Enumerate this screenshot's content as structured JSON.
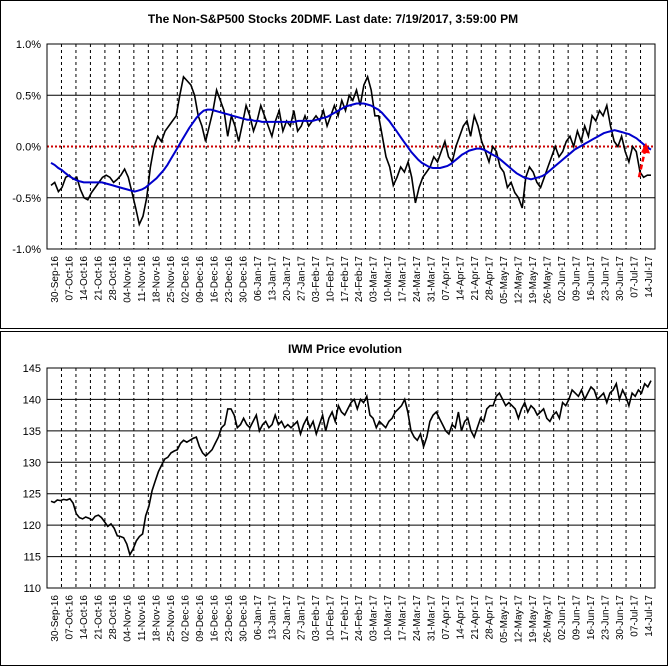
{
  "chart_data": [
    {
      "type": "line",
      "title": "The Non-S&P500 Stocks 20DMF. Last date: 7/19/2017, 3:59:00 PM",
      "y_tick_labels": [
        "1.0%",
        "0.5%",
        "0.0%",
        "-0.5%",
        "-1.0%"
      ],
      "x_tick_labels": [
        "30-Sep-16",
        "07-Oct-16",
        "14-Oct-16",
        "21-Oct-16",
        "28-Oct-16",
        "04-Nov-16",
        "11-Nov-16",
        "18-Nov-16",
        "25-Nov-16",
        "02-Dec-16",
        "09-Dec-16",
        "16-Dec-16",
        "23-Dec-16",
        "30-Dec-16",
        "06-Jan-17",
        "13-Jan-17",
        "20-Jan-17",
        "27-Jan-17",
        "03-Feb-17",
        "10-Feb-17",
        "17-Feb-17",
        "24-Feb-17",
        "03-Mar-17",
        "10-Mar-17",
        "17-Mar-17",
        "24-Mar-17",
        "31-Mar-17",
        "07-Apr-17",
        "14-Apr-17",
        "21-Apr-17",
        "28-Apr-17",
        "05-May-17",
        "12-May-17",
        "19-May-17",
        "26-May-17",
        "02-Jun-17",
        "09-Jun-17",
        "16-Jun-17",
        "23-Jun-17",
        "30-Jun-17",
        "07-Jul-17",
        "14-Jul-17"
      ],
      "ylim": [
        -1.0,
        1.0
      ],
      "grid": true,
      "zero_line_color": "#cc0000",
      "series_colors": [
        "#000000",
        "#0000cc"
      ],
      "arrow_color": "#ff0000",
      "series": [
        {
          "values": [
            -0.38,
            -0.35,
            -0.44,
            -0.4,
            -0.3,
            -0.28,
            -0.32,
            -0.3,
            -0.42,
            -0.5,
            -0.52,
            -0.45,
            -0.4,
            -0.35,
            -0.3,
            -0.28,
            -0.3,
            -0.35,
            -0.32,
            -0.28,
            -0.22,
            -0.3,
            -0.45,
            -0.6,
            -0.76,
            -0.68,
            -0.5,
            -0.2,
            0.0,
            0.1,
            0.05,
            0.15,
            0.2,
            0.25,
            0.3,
            0.5,
            0.68,
            0.64,
            0.6,
            0.5,
            0.3,
            0.2,
            0.05,
            0.2,
            0.35,
            0.55,
            0.45,
            0.35,
            0.1,
            0.3,
            0.2,
            0.05,
            0.22,
            0.4,
            0.3,
            0.15,
            0.25,
            0.4,
            0.3,
            0.2,
            0.1,
            0.25,
            0.35,
            0.15,
            0.25,
            0.2,
            0.35,
            0.15,
            0.2,
            0.3,
            0.2,
            0.25,
            0.3,
            0.25,
            0.35,
            0.2,
            0.3,
            0.4,
            0.3,
            0.45,
            0.35,
            0.5,
            0.45,
            0.55,
            0.4,
            0.6,
            0.68,
            0.55,
            0.3,
            0.3,
            0.1,
            -0.1,
            -0.2,
            -0.38,
            -0.3,
            -0.2,
            -0.25,
            -0.15,
            -0.3,
            -0.55,
            -0.4,
            -0.3,
            -0.25,
            -0.2,
            -0.1,
            -0.15,
            -0.05,
            0.05,
            -0.1,
            -0.15,
            0.0,
            0.1,
            0.2,
            0.25,
            0.1,
            0.3,
            0.2,
            0.05,
            -0.05,
            -0.15,
            0.0,
            -0.05,
            -0.2,
            -0.25,
            -0.4,
            -0.35,
            -0.45,
            -0.5,
            -0.6,
            -0.3,
            -0.2,
            -0.25,
            -0.35,
            -0.4,
            -0.3,
            -0.2,
            -0.1,
            0.0,
            -0.1,
            -0.05,
            0.05,
            0.1,
            0.0,
            0.15,
            0.05,
            0.2,
            0.1,
            0.3,
            0.25,
            0.35,
            0.3,
            0.4,
            0.2,
            0.05,
            0.0,
            0.1,
            -0.05,
            -0.15,
            0.0,
            -0.05,
            -0.25,
            -0.3,
            -0.28,
            -0.28
          ]
        },
        {
          "values": [
            -0.16,
            -0.18,
            -0.21,
            -0.23,
            -0.26,
            -0.29,
            -0.31,
            -0.33,
            -0.34,
            -0.35,
            -0.35,
            -0.35,
            -0.35,
            -0.35,
            -0.35,
            -0.36,
            -0.37,
            -0.38,
            -0.39,
            -0.4,
            -0.41,
            -0.42,
            -0.43,
            -0.44,
            -0.43,
            -0.42,
            -0.4,
            -0.37,
            -0.34,
            -0.31,
            -0.27,
            -0.23,
            -0.18,
            -0.12,
            -0.06,
            0.0,
            0.06,
            0.12,
            0.18,
            0.23,
            0.28,
            0.32,
            0.35,
            0.36,
            0.36,
            0.35,
            0.34,
            0.33,
            0.32,
            0.31,
            0.3,
            0.29,
            0.28,
            0.27,
            0.26,
            0.26,
            0.25,
            0.25,
            0.24,
            0.24,
            0.24,
            0.24,
            0.24,
            0.24,
            0.24,
            0.24,
            0.24,
            0.24,
            0.25,
            0.25,
            0.25,
            0.25,
            0.25,
            0.26,
            0.27,
            0.28,
            0.29,
            0.31,
            0.33,
            0.35,
            0.37,
            0.39,
            0.4,
            0.41,
            0.42,
            0.42,
            0.42,
            0.41,
            0.4,
            0.38,
            0.36,
            0.33,
            0.29,
            0.25,
            0.2,
            0.15,
            0.1,
            0.05,
            0.0,
            -0.05,
            -0.09,
            -0.13,
            -0.16,
            -0.18,
            -0.2,
            -0.21,
            -0.21,
            -0.21,
            -0.2,
            -0.19,
            -0.17,
            -0.14,
            -0.11,
            -0.08,
            -0.06,
            -0.04,
            -0.03,
            -0.02,
            -0.02,
            -0.03,
            -0.05,
            -0.07,
            -0.09,
            -0.11,
            -0.14,
            -0.17,
            -0.2,
            -0.23,
            -0.26,
            -0.28,
            -0.3,
            -0.31,
            -0.32,
            -0.31,
            -0.3,
            -0.29,
            -0.27,
            -0.24,
            -0.21,
            -0.18,
            -0.15,
            -0.12,
            -0.09,
            -0.06,
            -0.03,
            -0.01,
            0.01,
            0.03,
            0.05,
            0.07,
            0.09,
            0.11,
            0.13,
            0.14,
            0.15,
            0.16,
            0.15,
            0.14,
            0.13,
            0.12,
            0.1,
            0.08,
            0.05,
            0.02,
            -0.01,
            -0.03
          ]
        }
      ]
    },
    {
      "type": "line",
      "title": "IWM Price evolution",
      "y_tick_labels": [
        "145",
        "140",
        "135",
        "130",
        "125",
        "120",
        "115",
        "110"
      ],
      "x_tick_labels": [
        "30-Sep-16",
        "07-Oct-16",
        "14-Oct-16",
        "21-Oct-16",
        "28-Oct-16",
        "04-Nov-16",
        "11-Nov-16",
        "18-Nov-16",
        "25-Nov-16",
        "02-Dec-16",
        "09-Dec-16",
        "16-Dec-16",
        "23-Dec-16",
        "30-Dec-16",
        "06-Jan-17",
        "13-Jan-17",
        "20-Jan-17",
        "27-Jan-17",
        "03-Feb-17",
        "10-Feb-17",
        "17-Feb-17",
        "24-Feb-17",
        "03-Mar-17",
        "10-Mar-17",
        "17-Mar-17",
        "24-Mar-17",
        "31-Mar-17",
        "07-Apr-17",
        "14-Apr-17",
        "21-Apr-17",
        "28-Apr-17",
        "05-May-17",
        "12-May-17",
        "19-May-17",
        "26-May-17",
        "02-Jun-17",
        "09-Jun-17",
        "16-Jun-17",
        "23-Jun-17",
        "30-Jun-17",
        "07-Jul-17",
        "14-Jul-17"
      ],
      "ylim": [
        110,
        145
      ],
      "grid": true,
      "series_colors": [
        "#000000"
      ],
      "series": [
        {
          "values": [
            123.8,
            123.6,
            124.0,
            123.9,
            124.1,
            124.0,
            124.2,
            123.5,
            121.8,
            121.2,
            121.0,
            121.3,
            121.1,
            120.8,
            121.4,
            121.6,
            121.2,
            120.5,
            119.8,
            120.2,
            119.5,
            118.3,
            118.2,
            118.0,
            117.0,
            115.3,
            116.2,
            117.5,
            118.2,
            118.6,
            121.5,
            123.0,
            125.5,
            127.0,
            128.5,
            129.5,
            130.5,
            130.8,
            131.5,
            131.8,
            132.0,
            133.0,
            133.5,
            133.2,
            133.5,
            133.8,
            134.0,
            132.5,
            131.5,
            131.0,
            131.5,
            132.0,
            133.0,
            134.0,
            135.5,
            136.0,
            138.5,
            138.5,
            137.5,
            135.5,
            136.0,
            137.0,
            136.0,
            135.5,
            136.5,
            137.5,
            135.0,
            136.0,
            136.5,
            135.5,
            136.0,
            137.5,
            136.0,
            136.5,
            135.5,
            136.0,
            135.5,
            136.0,
            136.5,
            134.5,
            136.0,
            137.0,
            135.5,
            136.5,
            134.5,
            136.0,
            137.5,
            135.0,
            137.0,
            138.0,
            136.5,
            139.0,
            138.0,
            137.5,
            138.5,
            139.5,
            140.0,
            138.5,
            140.0,
            139.5,
            140.5,
            137.5,
            137.0,
            135.5,
            136.5,
            136.0,
            135.5,
            136.5,
            137.0,
            138.0,
            138.5,
            139.0,
            140.0,
            138.0,
            135.0,
            134.0,
            133.5,
            134.5,
            132.5,
            134.0,
            136.5,
            137.5,
            138.0,
            137.0,
            136.0,
            135.0,
            134.5,
            136.0,
            135.5,
            138.0,
            135.0,
            136.5,
            137.0,
            135.0,
            134.0,
            135.5,
            137.0,
            136.5,
            138.5,
            139.0,
            139.0,
            140.5,
            141.0,
            140.0,
            139.0,
            139.5,
            139.0,
            138.5,
            137.0,
            138.5,
            139.5,
            138.0,
            139.0,
            138.5,
            137.5,
            138.0,
            138.5,
            137.0,
            136.5,
            137.5,
            138.0,
            137.0,
            139.5,
            139.0,
            140.0,
            141.5,
            141.0,
            140.5,
            141.5,
            140.0,
            141.0,
            142.0,
            141.5,
            140.0,
            140.5,
            141.0,
            139.5,
            141.0,
            141.5,
            142.5,
            140.0,
            141.5,
            140.5,
            139.0,
            141.0,
            140.5,
            141.5,
            141.0,
            142.5,
            142.0,
            143.0
          ]
        }
      ]
    }
  ]
}
